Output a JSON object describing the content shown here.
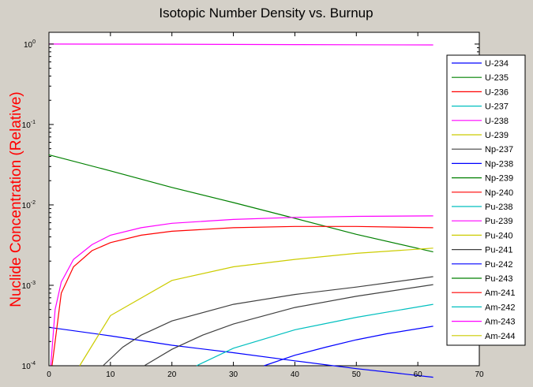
{
  "chart_data": {
    "type": "line",
    "title": "Isotopic Number Density vs. Burnup",
    "xlabel": "",
    "ylabel": "Nuclide Concentration (Relative)",
    "xlim": [
      0,
      70
    ],
    "ylim": [
      0.0001,
      1.4
    ],
    "yscale": "log",
    "xticks": [
      "0",
      "10",
      "20",
      "30",
      "40",
      "50",
      "60",
      "70"
    ],
    "yticks": [
      {
        "base": "10",
        "exp": "0"
      },
      {
        "base": "10",
        "exp": "-1"
      },
      {
        "base": "10",
        "exp": "-2"
      },
      {
        "base": "10",
        "exp": "-3"
      },
      {
        "base": "10",
        "exp": "-4"
      }
    ],
    "grid": false,
    "legend_position": "right",
    "background": "#d4d0c8",
    "plot_background": "#ffffff",
    "series": [
      {
        "name": "U-234",
        "color": "#0000ff",
        "x": [
          0,
          10,
          20,
          30,
          40,
          50,
          62.5
        ],
        "y": [
          0.0003,
          0.000235,
          0.00018,
          0.000145,
          0.000115,
          9.2e-05,
          7.2e-05
        ]
      },
      {
        "name": "U-235",
        "color": "#008000",
        "x": [
          0,
          10,
          20,
          30,
          40,
          50,
          62.5
        ],
        "y": [
          0.042,
          0.0265,
          0.0165,
          0.0107,
          0.0068,
          0.0043,
          0.0026
        ]
      },
      {
        "name": "U-236",
        "color": "#ff0000",
        "x": [
          0.5,
          2,
          4,
          7,
          10,
          15,
          20,
          30,
          40,
          50,
          62.5
        ],
        "y": [
          0.0001,
          0.0008,
          0.0017,
          0.0027,
          0.0034,
          0.0042,
          0.0047,
          0.0052,
          0.0054,
          0.0054,
          0.0052
        ]
      },
      {
        "name": "U-237",
        "color": "#00bfbf",
        "x": [
          24,
          30,
          40,
          50,
          62.5
        ],
        "y": [
          0.0001,
          0.000165,
          0.00028,
          0.0004,
          0.00058
        ]
      },
      {
        "name": "U-238",
        "color": "#ff00ff",
        "x": [
          0,
          10,
          20,
          30,
          40,
          50,
          62.5
        ],
        "y": [
          1.0,
          0.998,
          0.995,
          0.99,
          0.985,
          0.98,
          0.975
        ]
      },
      {
        "name": "U-239",
        "color": "#cccc00",
        "x": [
          5,
          10,
          20,
          30,
          40,
          50,
          62.5
        ],
        "y": [
          0.0001,
          0.00042,
          0.00115,
          0.0017,
          0.0021,
          0.0025,
          0.0029
        ]
      },
      {
        "name": "Np-237",
        "color": "#404040",
        "x": [
          8.8,
          12,
          15,
          20,
          30,
          40,
          50,
          62.5
        ],
        "y": [
          0.0001,
          0.00017,
          0.00024,
          0.00036,
          0.00058,
          0.00077,
          0.00095,
          0.00128
        ]
      },
      {
        "name": "Np-238",
        "color": "#0000ff",
        "x": [
          35,
          40,
          45,
          50,
          55,
          62.5
        ],
        "y": [
          0.0001,
          0.000135,
          0.00017,
          0.00021,
          0.00025,
          0.00031
        ]
      },
      {
        "name": "Np-239",
        "color": "#008000",
        "x": [],
        "y": []
      },
      {
        "name": "Np-240",
        "color": "#ff0000",
        "x": [],
        "y": []
      },
      {
        "name": "Pu-238",
        "color": "#00bfbf",
        "x": [],
        "y": []
      },
      {
        "name": "Pu-239",
        "color": "#ff00ff",
        "x": [
          0.3,
          1,
          2,
          4,
          7,
          10,
          15,
          20,
          30,
          40,
          50,
          62.5
        ],
        "y": [
          0.0001,
          0.0005,
          0.0011,
          0.0021,
          0.0032,
          0.0042,
          0.0052,
          0.0059,
          0.0066,
          0.007,
          0.0072,
          0.0073
        ]
      },
      {
        "name": "Pu-240",
        "color": "#cccc00",
        "x": [],
        "y": []
      },
      {
        "name": "Pu-241",
        "color": "#404040",
        "x": [
          15.5,
          20,
          25,
          30,
          40,
          50,
          62.5
        ],
        "y": [
          0.0001,
          0.00016,
          0.00024,
          0.00033,
          0.00053,
          0.00073,
          0.00102
        ]
      },
      {
        "name": "Pu-242",
        "color": "#0000ff",
        "x": [],
        "y": []
      },
      {
        "name": "Pu-243",
        "color": "#008000",
        "x": [],
        "y": []
      },
      {
        "name": "Am-241",
        "color": "#ff0000",
        "x": [],
        "y": []
      },
      {
        "name": "Am-242",
        "color": "#00bfbf",
        "x": [],
        "y": []
      },
      {
        "name": "Am-243",
        "color": "#ff00ff",
        "x": [],
        "y": []
      },
      {
        "name": "Am-244",
        "color": "#cccc00",
        "x": [],
        "y": []
      }
    ]
  }
}
